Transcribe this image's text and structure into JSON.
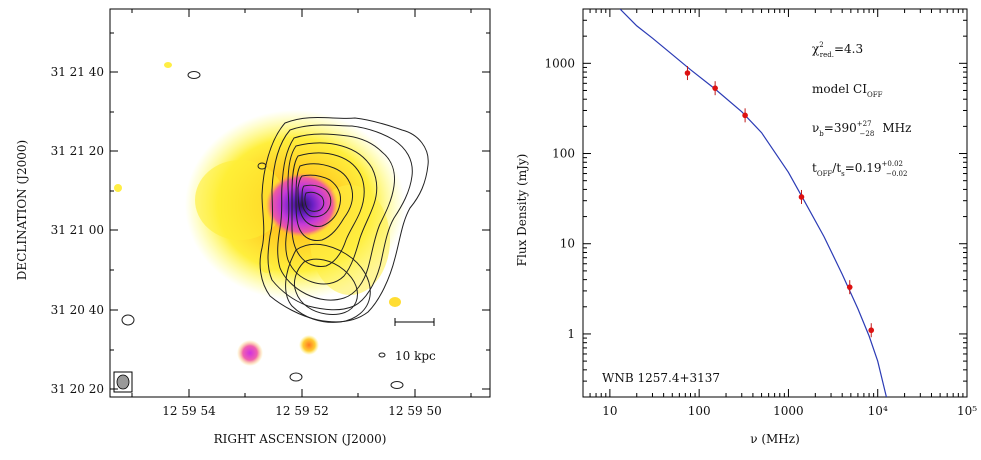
{
  "left_panel": {
    "xlabel": "RIGHT ASCENSION  (J2000)",
    "ylabel": "DECLINATION  (J2000)",
    "x_ticks": [
      "12 59 54",
      "12 59 52",
      "12 59 50"
    ],
    "y_ticks": [
      "31 21 40",
      "31 21 20",
      "31 21 00",
      "31 20 40",
      "31 20 20"
    ],
    "scale_bar_label": "10 kpc"
  },
  "chart_data": {
    "type": "scatter",
    "title": "",
    "xlabel": "ν (MHz)",
    "ylabel": "Flux Density (mJy)",
    "xscale": "log",
    "yscale": "log",
    "xlim": [
      5,
      100000
    ],
    "ylim": [
      0.2,
      4000
    ],
    "x_tick_labels": [
      {
        "value": 10,
        "label": "10"
      },
      {
        "value": 100,
        "label": "100"
      },
      {
        "value": 1000,
        "label": "1000"
      },
      {
        "value": 10000,
        "label": "10⁴"
      },
      {
        "value": 100000,
        "label": "10⁵"
      }
    ],
    "y_tick_labels": [
      {
        "value": 1,
        "label": "1"
      },
      {
        "value": 10,
        "label": "10"
      },
      {
        "value": 100,
        "label": "100"
      },
      {
        "value": 1000,
        "label": "1000"
      }
    ],
    "series": [
      {
        "name": "measurements",
        "points": [
          {
            "x": 74,
            "y": 780
          },
          {
            "x": 151,
            "y": 530
          },
          {
            "x": 327,
            "y": 265
          },
          {
            "x": 1400,
            "y": 33
          },
          {
            "x": 4860,
            "y": 3.3
          },
          {
            "x": 8460,
            "y": 1.1
          }
        ]
      },
      {
        "name": "model CI_OFF fit",
        "curve": [
          {
            "x": 13,
            "y": 4000
          },
          {
            "x": 20,
            "y": 2600
          },
          {
            "x": 30,
            "y": 1900
          },
          {
            "x": 50,
            "y": 1250
          },
          {
            "x": 80,
            "y": 850
          },
          {
            "x": 150,
            "y": 520
          },
          {
            "x": 300,
            "y": 290
          },
          {
            "x": 500,
            "y": 170
          },
          {
            "x": 1000,
            "y": 62
          },
          {
            "x": 1500,
            "y": 30
          },
          {
            "x": 2500,
            "y": 12
          },
          {
            "x": 4000,
            "y": 4.6
          },
          {
            "x": 6000,
            "y": 1.9
          },
          {
            "x": 8000,
            "y": 0.95
          },
          {
            "x": 10000,
            "y": 0.5
          },
          {
            "x": 12500,
            "y": 0.2
          }
        ]
      }
    ],
    "annotations": {
      "chi": "χ",
      "chi_sup": "2",
      "chi_sub": "red.",
      "chi_value": "=4.3",
      "model_label": "model CI",
      "model_sub": "OFF",
      "nub_main": "ν",
      "nub_sub": "b",
      "nub_value": "=390",
      "nub_up": "+27",
      "nub_down": "−28",
      "nub_unit": "MHz",
      "toff_main": "t",
      "toff_sub": "OFF",
      "toff_slash": "/t",
      "toff_sub2": "s",
      "toff_value": "=0.19",
      "toff_up": "+0.02",
      "toff_down": "−0.02",
      "source_name": "WNB 1257.4+3137"
    }
  }
}
